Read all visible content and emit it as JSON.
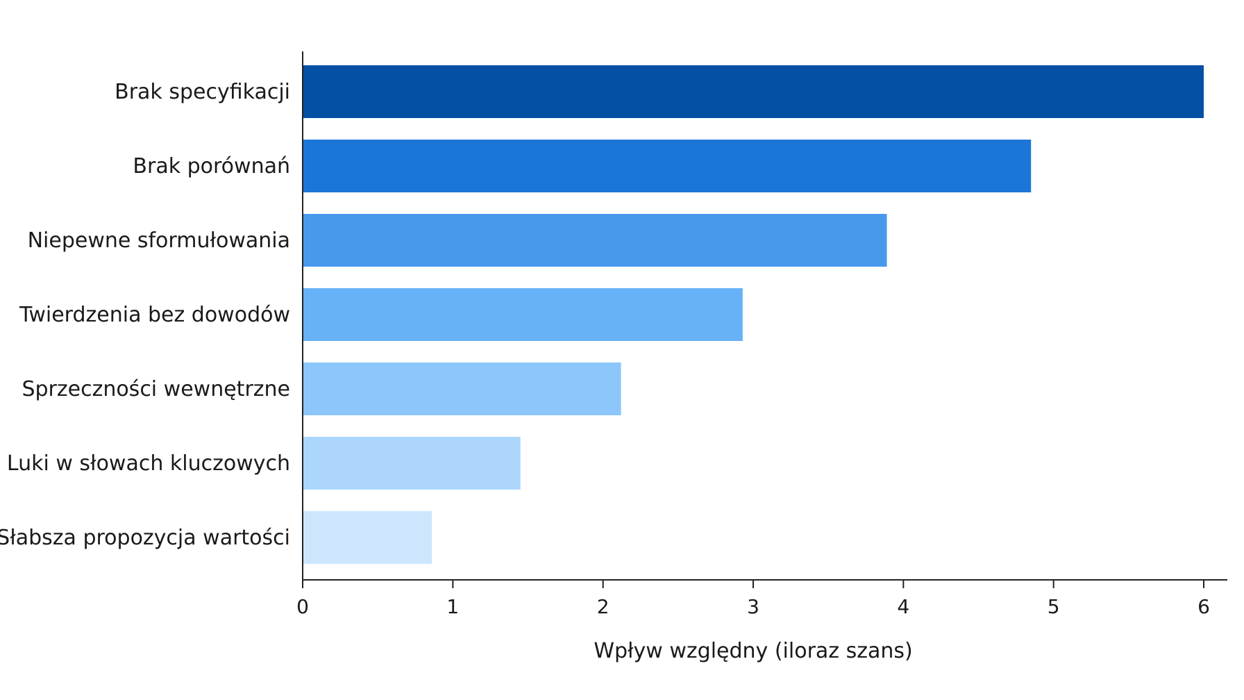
{
  "chart_data": {
    "type": "bar",
    "orientation": "horizontal",
    "categories": [
      "Brak specyfikacji",
      "Brak porównań",
      "Niepewne sformułowania",
      "Twierdzenia bez dowodów",
      "Sprzeczności wewnętrzne",
      "Luki w słowach kluczowych",
      "Słabsza propozycja wartości"
    ],
    "values": [
      6.0,
      4.85,
      3.89,
      2.93,
      2.12,
      1.45,
      0.86
    ],
    "colors": [
      "#0450a4",
      "#1c76d8",
      "#4899ec",
      "#67b1f7",
      "#8cc6fb",
      "#acd6fc",
      "#cde6fd"
    ],
    "xlabel": "Wpływ względny (iloraz szans)",
    "ylabel": "",
    "xlim": [
      0,
      6
    ],
    "xticks": [
      "0",
      "1",
      "2",
      "3",
      "4",
      "5",
      "6"
    ],
    "grid": false
  }
}
